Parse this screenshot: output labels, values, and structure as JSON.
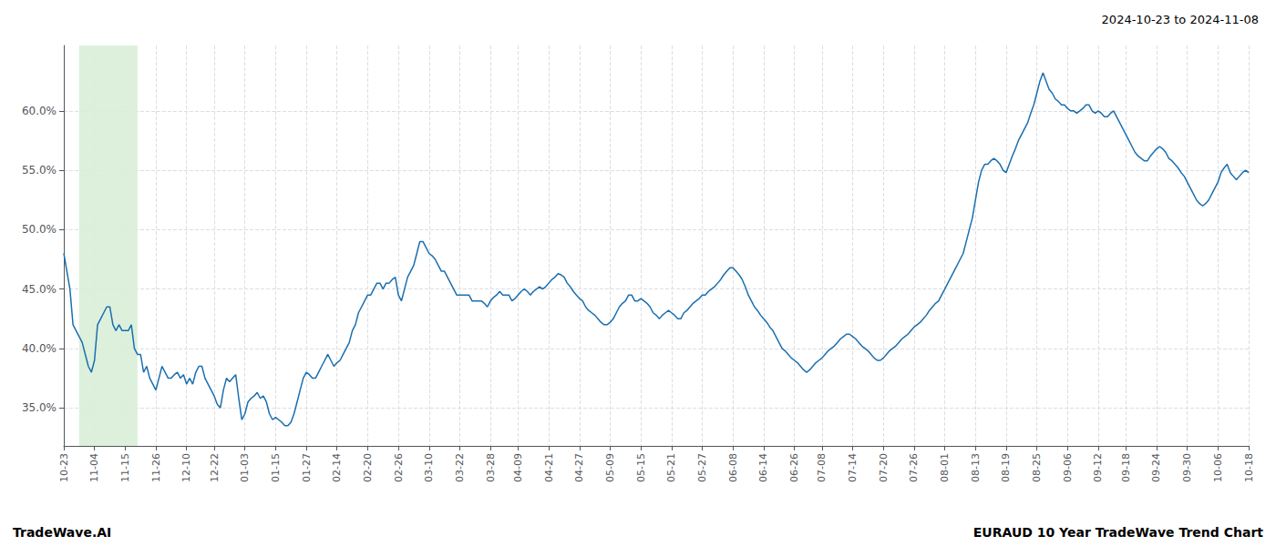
{
  "chart_data": {
    "type": "line",
    "title": "2024-10-23 to 2024-11-08",
    "annotations": [
      "TradeWave.AI",
      "EURAUD 10 Year TradeWave Trend Chart"
    ],
    "color": "#1a6faf",
    "grid": true,
    "highlight": {
      "start": 4.8375,
      "end": 24.1875,
      "color": "#d8eed8"
    },
    "ylim": [
      0.318,
      0.655
    ],
    "yticks": [
      {
        "value": 0.35,
        "label": "35.0%"
      },
      {
        "value": 0.4,
        "label": "40.0%"
      },
      {
        "value": 0.45,
        "label": "45.0%"
      },
      {
        "value": 0.5,
        "label": "50.0%"
      },
      {
        "value": 0.55,
        "label": "55.0%"
      },
      {
        "value": 0.6,
        "label": "60.0%"
      }
    ],
    "categories": [
      "10-23",
      null,
      null,
      null,
      null,
      null,
      null,
      null,
      null,
      null,
      "11-04",
      null,
      null,
      null,
      null,
      null,
      null,
      null,
      null,
      null,
      "11-15",
      null,
      null,
      null,
      null,
      null,
      null,
      null,
      null,
      null,
      "11-26",
      null,
      null,
      null,
      null,
      null,
      null,
      null,
      null,
      null,
      "12-10",
      null,
      null,
      null,
      null,
      null,
      null,
      null,
      null,
      "12-22",
      null,
      null,
      null,
      null,
      null,
      null,
      null,
      null,
      null,
      "01-03",
      null,
      null,
      null,
      null,
      null,
      null,
      null,
      null,
      null,
      "01-15",
      null,
      null,
      null,
      null,
      null,
      null,
      null,
      null,
      null,
      "01-27",
      null,
      null,
      null,
      null,
      null,
      null,
      null,
      null,
      null,
      "02-14",
      null,
      null,
      null,
      null,
      null,
      null,
      null,
      null,
      null,
      "02-20",
      null,
      null,
      null,
      null,
      null,
      null,
      null,
      null,
      null,
      "02-26",
      null,
      null,
      null,
      null,
      null,
      null,
      null,
      null,
      null,
      "03-10",
      null,
      null,
      null,
      null,
      null,
      null,
      null,
      null,
      null,
      "03-22",
      null,
      null,
      null,
      null,
      null,
      null,
      null,
      null,
      null,
      "03-28",
      null,
      null,
      null,
      null,
      null,
      null,
      null,
      null,
      "04-09",
      null,
      null,
      null,
      null,
      null,
      null,
      null,
      null,
      null,
      "04-21",
      null,
      null,
      null,
      null,
      null,
      null,
      null,
      null,
      null,
      "04-27",
      null,
      null,
      null,
      null,
      null,
      null,
      null,
      null,
      null,
      "05-09",
      null,
      null,
      null,
      null,
      null,
      null,
      null,
      null,
      null,
      "05-15",
      null,
      null,
      null,
      null,
      null,
      null,
      null,
      null,
      null,
      "05-21",
      null,
      null,
      null,
      null,
      null,
      null,
      null,
      null,
      null,
      "05-27",
      null,
      null,
      null,
      null,
      null,
      null,
      null,
      null,
      null,
      "06-08",
      null,
      null,
      null,
      null,
      null,
      null,
      null,
      null,
      null,
      "06-14",
      null,
      null,
      null,
      null,
      null,
      null,
      null,
      null,
      null,
      "06-26",
      null,
      null,
      null,
      null,
      null,
      null,
      null,
      null,
      "07-08",
      null,
      null,
      null,
      null,
      null,
      null,
      null,
      null,
      null,
      "07-14",
      null,
      null,
      null,
      null,
      null,
      null,
      null,
      null,
      null,
      "07-20",
      null,
      null,
      null,
      null,
      null,
      null,
      null,
      null,
      null,
      "07-26",
      null,
      null,
      null,
      null,
      null,
      null,
      null,
      null,
      null,
      "08-01",
      null,
      null,
      null,
      null,
      null,
      null,
      null,
      null,
      null,
      "08-13",
      null,
      null,
      null,
      null,
      null,
      null,
      null,
      null,
      null,
      "08-19",
      null,
      null,
      null,
      null,
      null,
      null,
      null,
      null,
      null,
      "08-25",
      null,
      null,
      null,
      null,
      null,
      null,
      null,
      null,
      null,
      "09-06",
      null,
      null,
      null,
      null,
      null,
      null,
      null,
      null,
      null,
      "09-12",
      null,
      null,
      null,
      null,
      null,
      null,
      null,
      null,
      "09-18",
      null,
      null,
      null,
      null,
      null,
      null,
      null,
      null,
      null,
      "09-24",
      null,
      null,
      null,
      null,
      null,
      null,
      null,
      null,
      null,
      "09-30",
      null,
      null,
      null,
      null,
      null,
      null,
      null,
      null,
      null,
      "10-06",
      null,
      null,
      null,
      null,
      null,
      null,
      null,
      null,
      null,
      "10-18"
    ],
    "values": [
      0.48,
      0.465,
      0.45,
      0.42,
      0.415,
      0.41,
      0.405,
      0.395,
      0.385,
      0.38,
      0.39,
      0.42,
      0.425,
      0.43,
      0.435,
      0.435,
      0.42,
      0.415,
      0.42,
      0.415,
      0.415,
      0.415,
      0.42,
      0.4,
      0.395,
      0.395,
      0.38,
      0.385,
      0.375,
      0.37,
      0.365,
      0.375,
      0.385,
      0.38,
      0.375,
      0.375,
      0.378,
      0.38,
      0.375,
      0.378,
      0.37,
      0.375,
      0.37,
      0.38,
      0.385,
      0.385,
      0.375,
      0.37,
      0.365,
      0.36,
      0.353,
      0.35,
      0.365,
      0.375,
      0.372,
      0.375,
      0.378,
      0.358,
      0.34,
      0.345,
      0.355,
      0.358,
      0.36,
      0.363,
      0.358,
      0.36,
      0.355,
      0.345,
      0.34,
      0.342,
      0.34,
      0.338,
      0.335,
      0.335,
      0.338,
      0.345,
      0.355,
      0.365,
      0.375,
      0.38,
      0.378,
      0.375,
      0.375,
      0.38,
      0.385,
      0.39,
      0.395,
      0.39,
      0.385,
      0.388,
      0.39,
      0.395,
      0.4,
      0.405,
      0.415,
      0.42,
      0.43,
      0.435,
      0.44,
      0.445,
      0.445,
      0.45,
      0.455,
      0.455,
      0.45,
      0.455,
      0.455,
      0.458,
      0.46,
      0.445,
      0.44,
      0.45,
      0.46,
      0.465,
      0.47,
      0.48,
      0.49,
      0.49,
      0.485,
      0.48,
      0.478,
      0.475,
      0.47,
      0.465,
      0.465,
      0.46,
      0.455,
      0.45,
      0.445,
      0.445,
      0.445,
      0.445,
      0.445,
      0.44,
      0.44,
      0.44,
      0.44,
      0.438,
      0.435,
      0.44,
      0.443,
      0.445,
      0.448,
      0.445,
      0.445,
      0.445,
      0.44,
      0.442,
      0.445,
      0.448,
      0.45,
      0.448,
      0.445,
      0.448,
      0.45,
      0.452,
      0.45,
      0.452,
      0.455,
      0.458,
      0.46,
      0.463,
      0.462,
      0.46,
      0.455,
      0.452,
      0.448,
      0.445,
      0.442,
      0.44,
      0.435,
      0.432,
      0.43,
      0.428,
      0.425,
      0.422,
      0.42,
      0.42,
      0.422,
      0.425,
      0.43,
      0.435,
      0.438,
      0.44,
      0.445,
      0.445,
      0.44,
      0.44,
      0.442,
      0.44,
      0.438,
      0.435,
      0.43,
      0.428,
      0.425,
      0.428,
      0.43,
      0.432,
      0.43,
      0.428,
      0.425,
      0.425,
      0.43,
      0.432,
      0.435,
      0.438,
      0.44,
      0.442,
      0.445,
      0.445,
      0.448,
      0.45,
      0.452,
      0.455,
      0.458,
      0.462,
      0.465,
      0.468,
      0.468,
      0.465,
      0.462,
      0.458,
      0.452,
      0.445,
      0.44,
      0.435,
      0.432,
      0.428,
      0.425,
      0.422,
      0.418,
      0.415,
      0.41,
      0.405,
      0.4,
      0.398,
      0.395,
      0.392,
      0.39,
      0.388,
      0.385,
      0.382,
      0.38,
      0.382,
      0.385,
      0.388,
      0.39,
      0.392,
      0.395,
      0.398,
      0.4,
      0.402,
      0.405,
      0.408,
      0.41,
      0.412,
      0.412,
      0.41,
      0.408,
      0.405,
      0.402,
      0.4,
      0.398,
      0.395,
      0.392,
      0.39,
      0.39,
      0.392,
      0.395,
      0.398,
      0.4,
      0.402,
      0.405,
      0.408,
      0.41,
      0.412,
      0.415,
      0.418,
      0.42,
      0.422,
      0.425,
      0.428,
      0.432,
      0.435,
      0.438,
      0.44,
      0.445,
      0.45,
      0.455,
      0.46,
      0.465,
      0.47,
      0.475,
      0.48,
      0.49,
      0.5,
      0.51,
      0.525,
      0.54,
      0.55,
      0.555,
      0.555,
      0.558,
      0.56,
      0.558,
      0.555,
      0.55,
      0.548,
      0.555,
      0.562,
      0.568,
      0.575,
      0.58,
      0.585,
      0.59,
      0.598,
      0.605,
      0.615,
      0.625,
      0.632,
      0.625,
      0.618,
      0.615,
      0.61,
      0.608,
      0.605,
      0.605,
      0.602,
      0.6,
      0.6,
      0.598,
      0.6,
      0.602,
      0.605,
      0.605,
      0.6,
      0.598,
      0.6,
      0.598,
      0.595,
      0.595,
      0.598,
      0.6,
      0.595,
      0.59,
      0.585,
      0.58,
      0.575,
      0.57,
      0.565,
      0.562,
      0.56,
      0.558,
      0.558,
      0.562,
      0.565,
      0.568,
      0.57,
      0.568,
      0.565,
      0.56,
      0.558,
      0.555,
      0.552,
      0.548,
      0.545,
      0.54,
      0.535,
      0.53,
      0.525,
      0.522,
      0.52,
      0.522,
      0.525,
      0.53,
      0.535,
      0.54,
      0.548,
      0.552,
      0.555,
      0.548,
      0.545,
      0.542,
      0.545,
      0.548,
      0.55,
      0.548
    ]
  }
}
